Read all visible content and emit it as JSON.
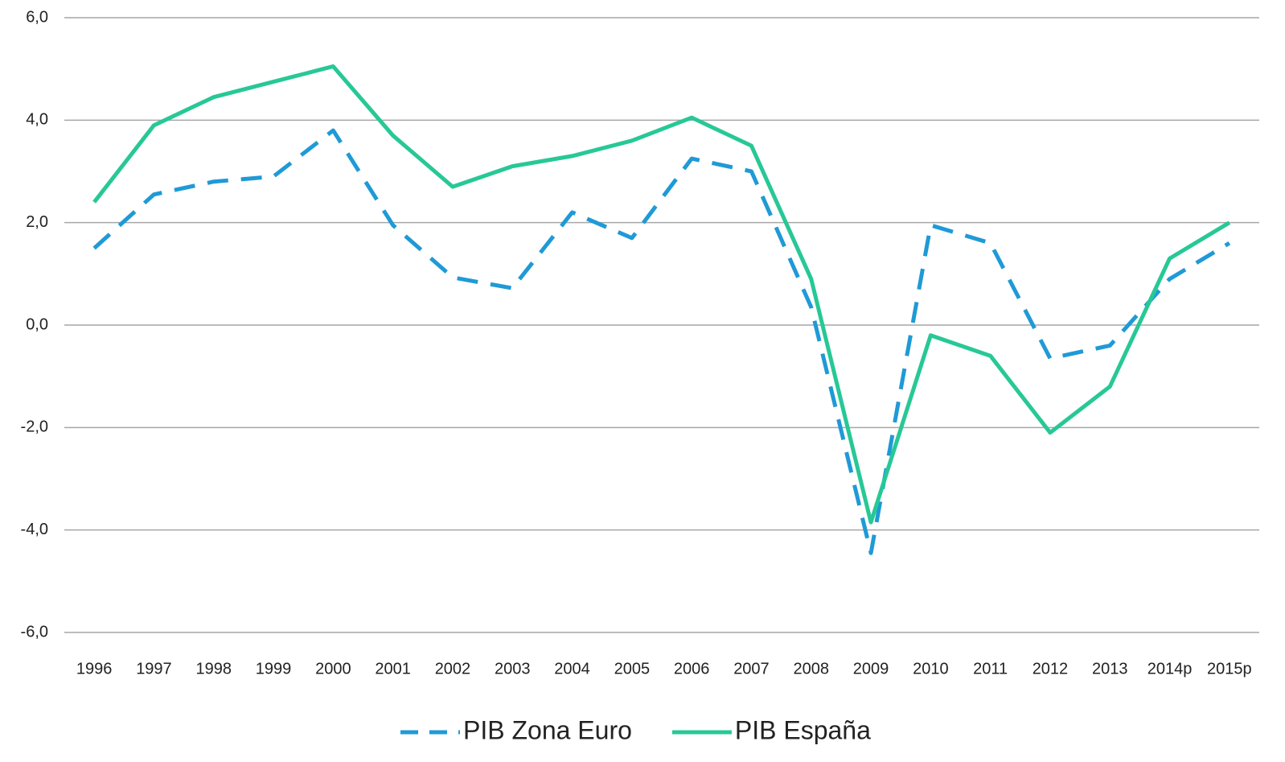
{
  "chart_data": {
    "type": "line",
    "categories": [
      "1996",
      "1997",
      "1998",
      "1999",
      "2000",
      "2001",
      "2002",
      "2003",
      "2004",
      "2005",
      "2006",
      "2007",
      "2008",
      "2009",
      "2010",
      "2011",
      "2012",
      "2013",
      "2014p",
      "2015p"
    ],
    "series": [
      {
        "name": "PIB Zona Euro",
        "color": "#1f9ad6",
        "dashed": true,
        "values": [
          1.5,
          2.55,
          2.8,
          2.9,
          3.8,
          1.95,
          0.93,
          0.72,
          2.2,
          1.7,
          3.25,
          3.0,
          0.35,
          -4.45,
          1.95,
          1.6,
          -0.65,
          -0.4,
          0.9,
          1.6
        ]
      },
      {
        "name": "PIB España",
        "color": "#27c896",
        "dashed": false,
        "values": [
          2.4,
          3.9,
          4.45,
          4.75,
          5.05,
          3.7,
          2.7,
          3.1,
          3.3,
          3.6,
          4.05,
          3.5,
          0.9,
          -3.85,
          -0.2,
          -0.6,
          -2.1,
          -1.2,
          1.3,
          2.0
        ]
      }
    ],
    "ylim": [
      -6,
      6
    ],
    "yticks": [
      {
        "value": -6,
        "label": "-6,0"
      },
      {
        "value": -4,
        "label": "-4,0"
      },
      {
        "value": -2,
        "label": "-2,0"
      },
      {
        "value": 0,
        "label": "0,0"
      },
      {
        "value": 2,
        "label": "2,0"
      },
      {
        "value": 4,
        "label": "4,0"
      },
      {
        "value": 6,
        "label": "6,0"
      }
    ],
    "grid": true,
    "legend": "bottom"
  }
}
